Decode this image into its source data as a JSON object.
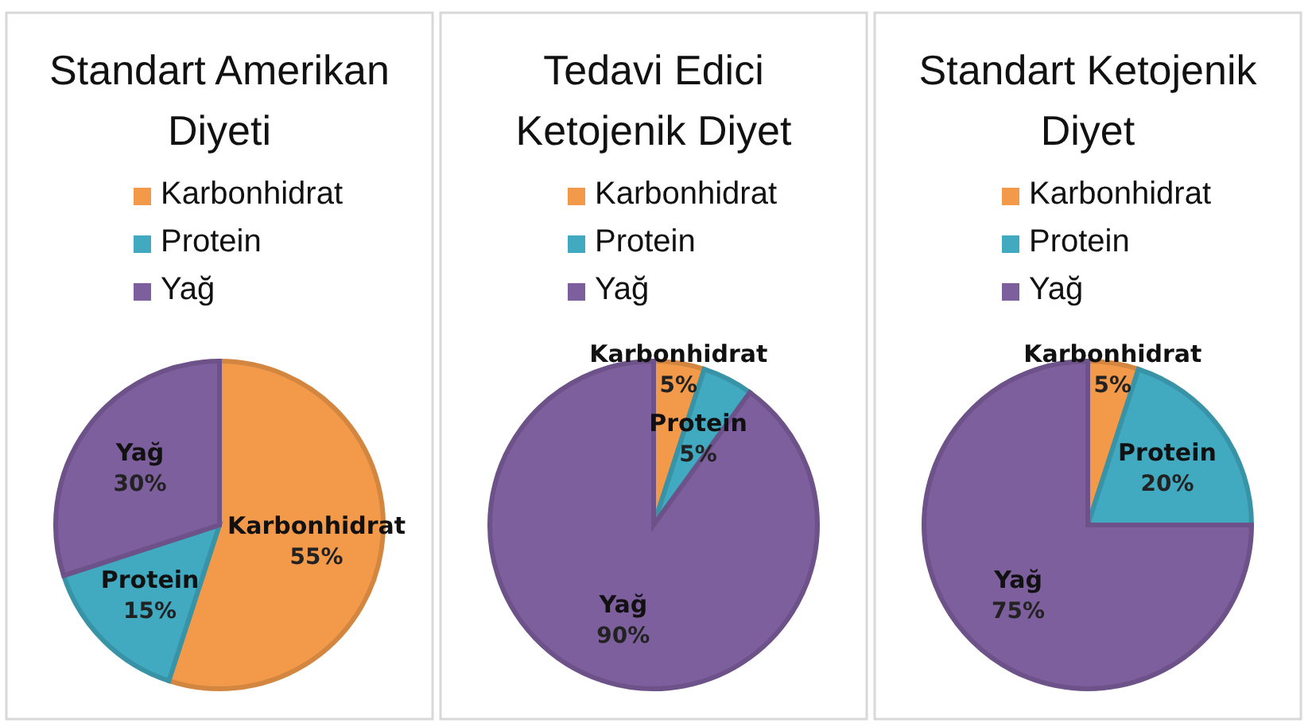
{
  "chart_data": [
    {
      "type": "pie",
      "title": "Standart Amerikan Diyeti",
      "categories": [
        "Karbonhidrat",
        "Protein",
        "Yağ"
      ],
      "values": [
        55,
        15,
        30
      ],
      "colors": [
        "#f39a4a",
        "#41a9c0",
        "#7e5f9e"
      ],
      "value_labels": [
        "55%",
        "15%",
        "30%"
      ],
      "legend": "top"
    },
    {
      "type": "pie",
      "title": "Tedavi Edici Ketojenik Diyet",
      "categories": [
        "Karbonhidrat",
        "Protein",
        "Yağ"
      ],
      "values": [
        5,
        5,
        90
      ],
      "colors": [
        "#f39a4a",
        "#41a9c0",
        "#7e5f9e"
      ],
      "value_labels": [
        "5%",
        "5%",
        "90%"
      ],
      "legend": "top"
    },
    {
      "type": "pie",
      "title": "Standart Ketojenik Diyet",
      "categories": [
        "Karbonhidrat",
        "Protein",
        "Yağ"
      ],
      "values": [
        5,
        20,
        75
      ],
      "colors": [
        "#f39a4a",
        "#41a9c0",
        "#7e5f9e"
      ],
      "value_labels": [
        "5%",
        "20%",
        "75%"
      ],
      "legend": "top"
    }
  ]
}
